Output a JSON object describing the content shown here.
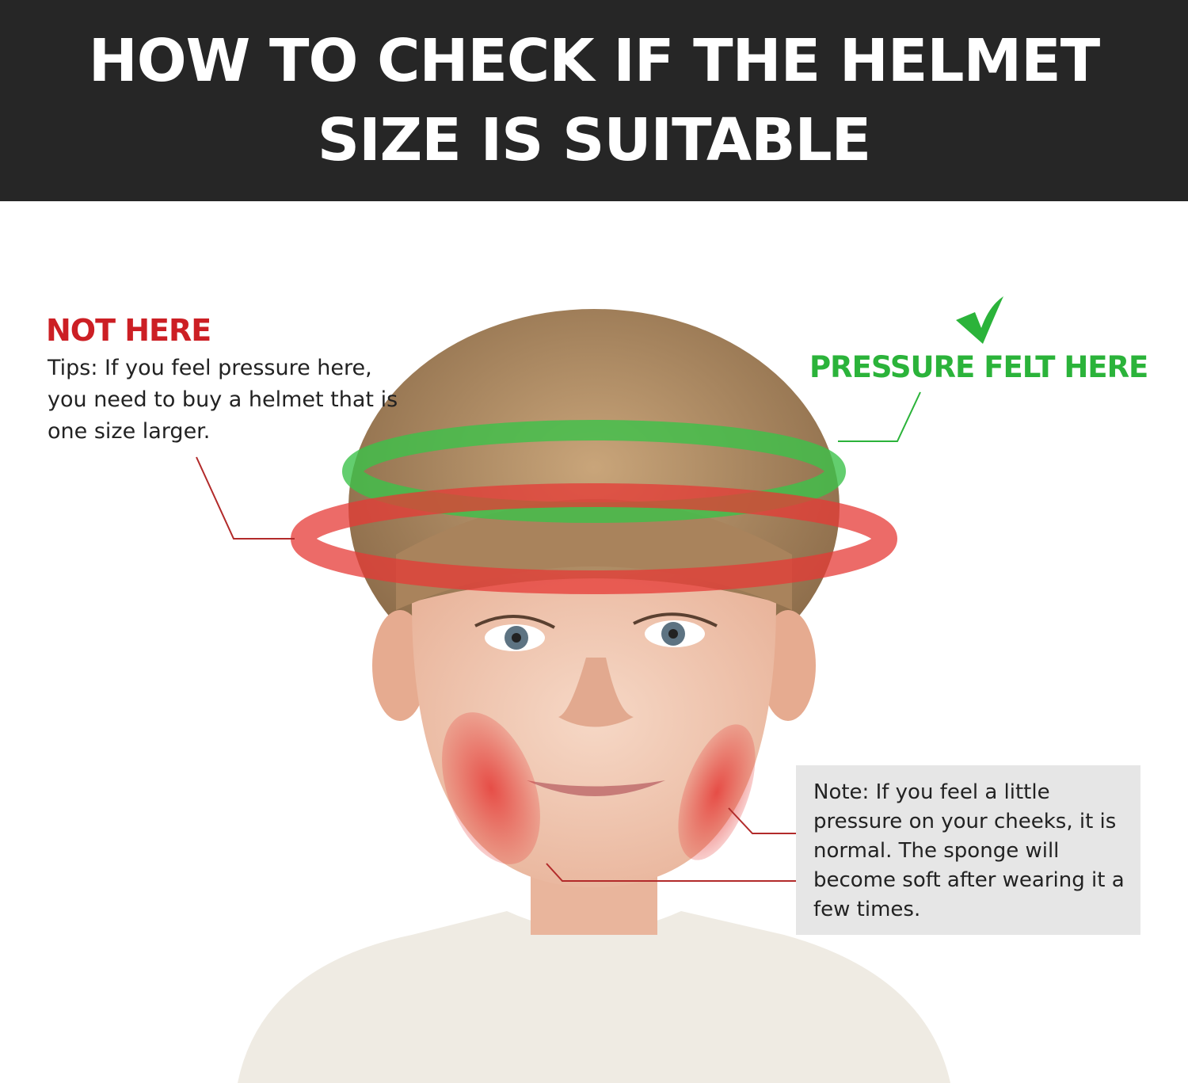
{
  "header": {
    "title_line1": "HOW TO CHECK IF THE HELMET",
    "title_line2": "SIZE IS SUITABLE"
  },
  "callouts": {
    "not_here": {
      "heading": "NOT HERE",
      "text": "Tips: If you feel pressure here, you need to buy a helmet that is one size larger."
    },
    "pressure_felt": {
      "heading": "PRESSURE FELT HERE",
      "icon": "checkmark-icon"
    },
    "note": {
      "text": "Note: If you feel a little pressure on your cheeks, it is normal. The sponge will become soft after wearing it a few times."
    }
  },
  "colors": {
    "header_bg": "#262626",
    "red": "#cc1f24",
    "green": "#2bb33a",
    "note_bg": "#e6e6e6"
  }
}
